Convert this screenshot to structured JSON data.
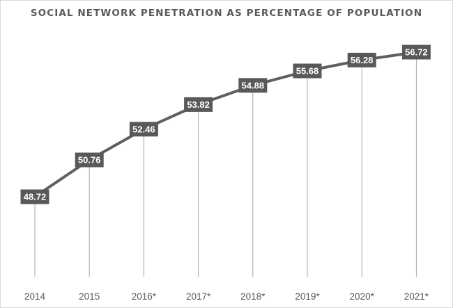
{
  "chart_data": {
    "type": "line",
    "title": "SOCIAL NETWORK PENETRATION AS PERCENTAGE OF POPULATION",
    "categories": [
      "2014",
      "2015",
      "2016*",
      "2017*",
      "2018*",
      "2019*",
      "2020*",
      "2021*"
    ],
    "series": [
      {
        "values": [
          48.72,
          50.76,
          52.46,
          53.82,
          54.88,
          55.68,
          56.28,
          56.72
        ]
      }
    ],
    "data_labels": [
      "48.72",
      "50.76",
      "52.46",
      "53.82",
      "54.88",
      "55.68",
      "56.28",
      "56.72"
    ],
    "drop_lines": true,
    "grid": false,
    "legend": "none",
    "colors": {
      "line": "#5f5f5f",
      "label_bg": "#595959",
      "label_text": "#ffffff",
      "drop_line": "#a6a6a6",
      "text": "#595959"
    }
  }
}
